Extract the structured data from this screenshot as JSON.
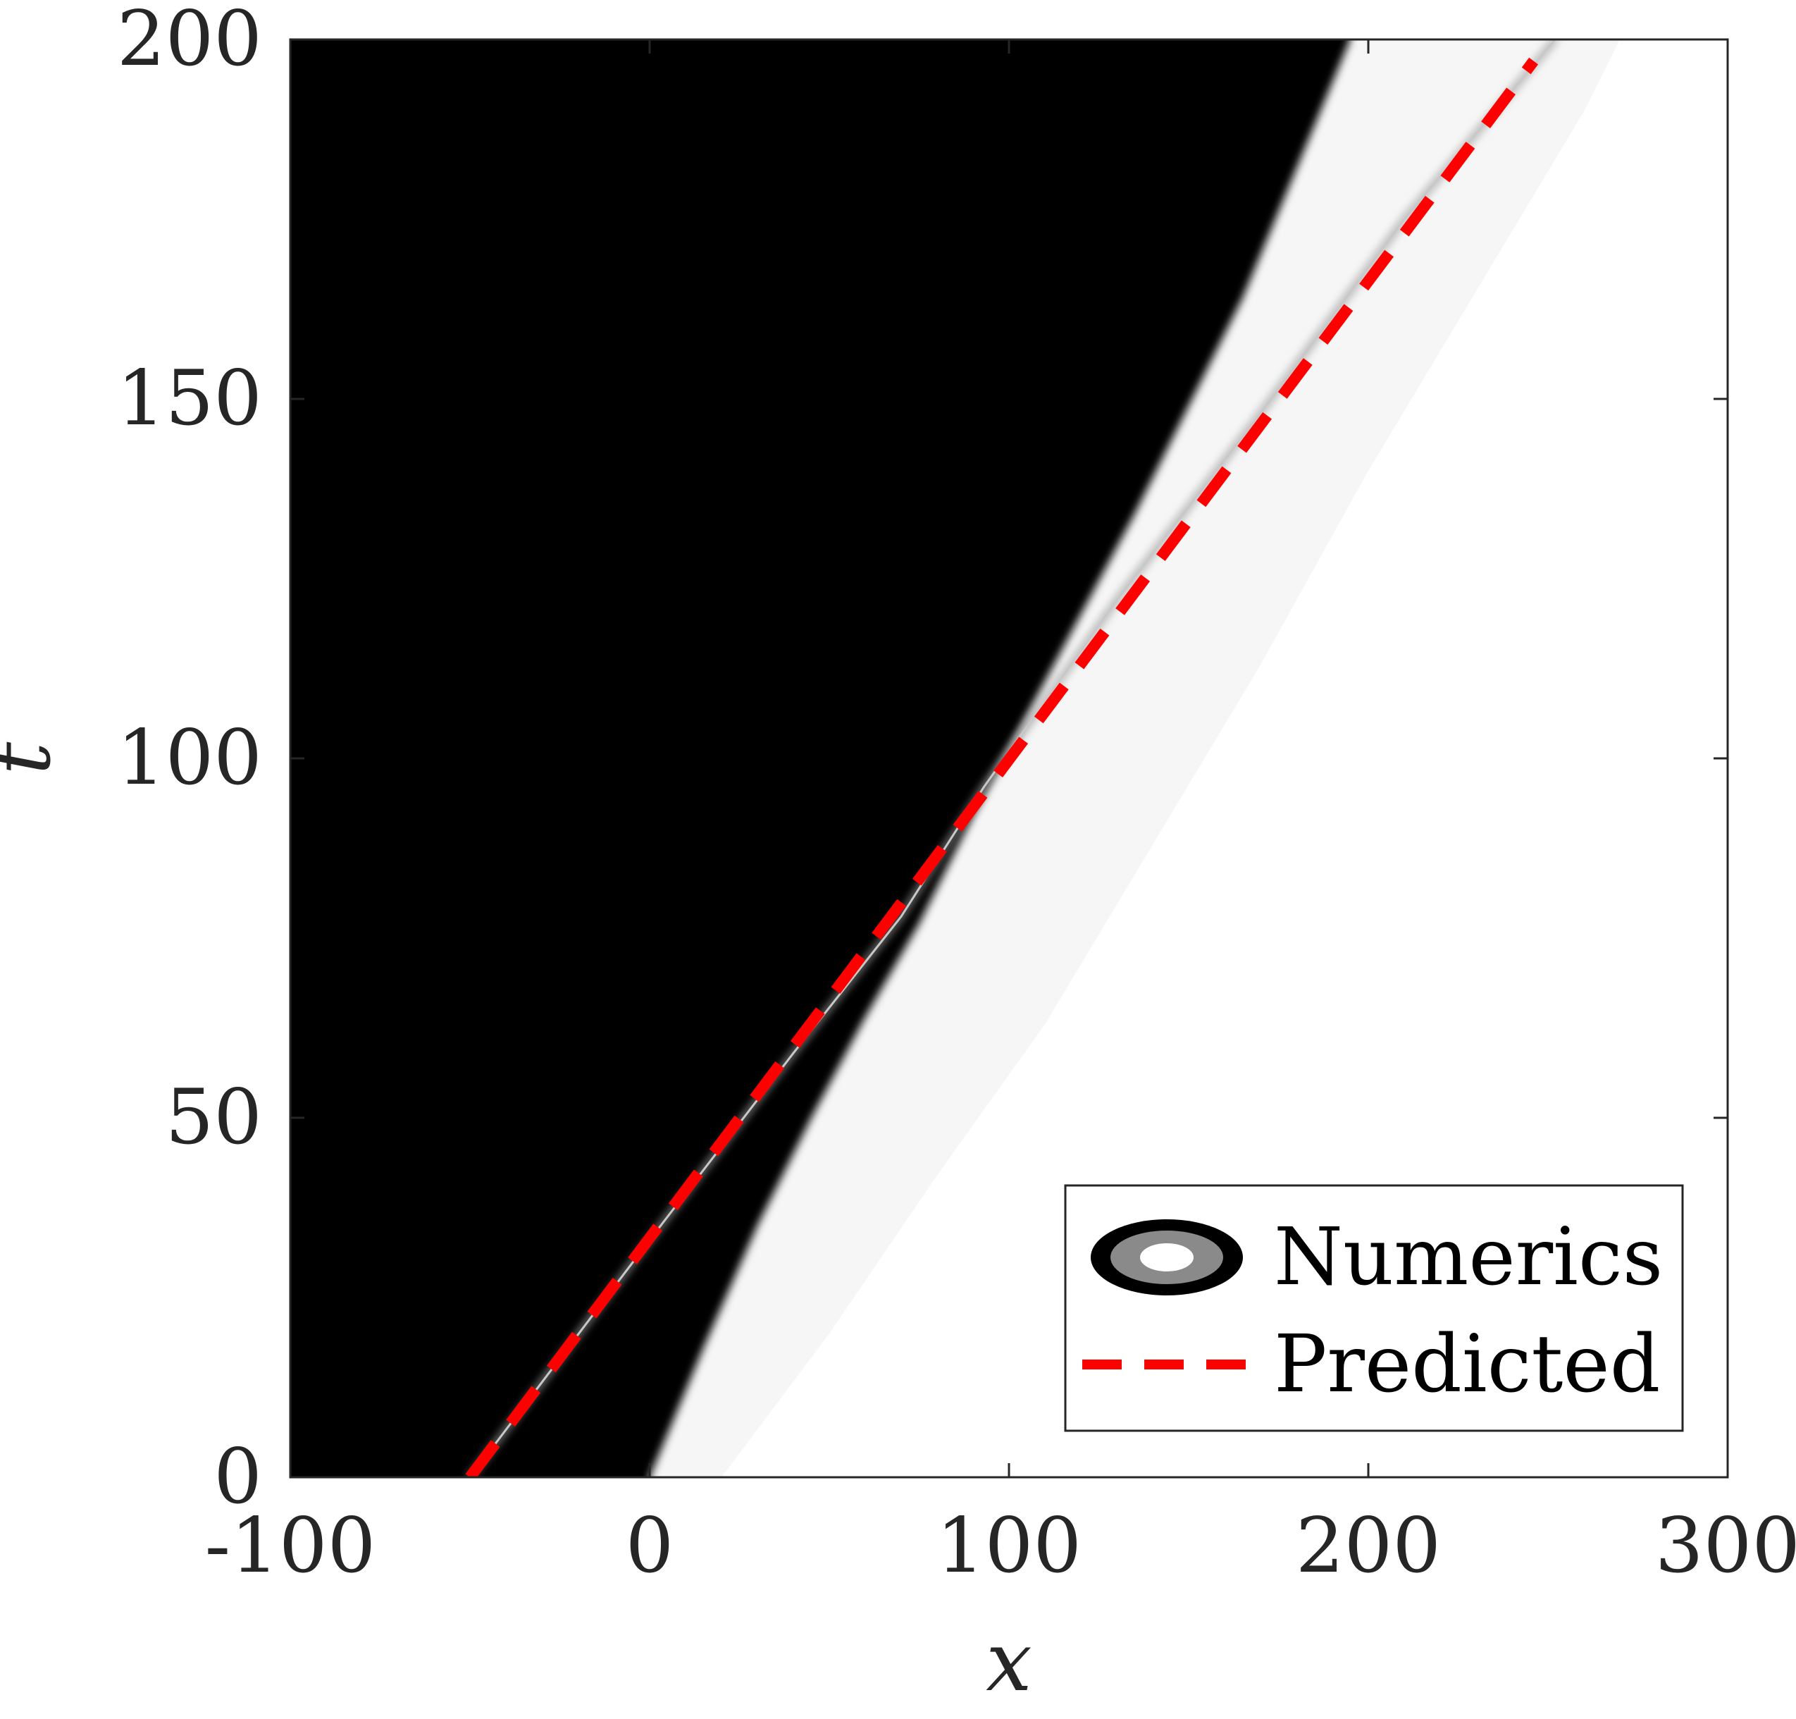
{
  "chart_data": {
    "type": "heatmap",
    "title": "",
    "xlabel": "x",
    "ylabel": "t",
    "xlim": [
      -100,
      300
    ],
    "ylim": [
      0,
      200
    ],
    "x_ticks": [
      -100,
      0,
      100,
      200,
      300
    ],
    "y_ticks": [
      0,
      50,
      100,
      150,
      200
    ],
    "x_tick_labels": [
      "-100",
      "0",
      "100",
      "200",
      "300"
    ],
    "y_tick_labels": [
      "0",
      "50",
      "100",
      "150",
      "200"
    ],
    "grid": false,
    "colormap": "gray",
    "legend_position": "bottom-right",
    "legend": [
      {
        "label": "Numerics",
        "marker": "contour-ellipse"
      },
      {
        "label": "Predicted",
        "marker": "dashed-line",
        "color": "#ff0000"
      }
    ],
    "series": [
      {
        "name": "Predicted",
        "style": "dashed",
        "color": "#ff0000",
        "x": [
          -50,
          246
        ],
        "y": [
          0,
          197
        ]
      }
    ],
    "features": {
      "dark_region_boundary": {
        "x": [
          0,
          15,
          30,
          45,
          60,
          75,
          90,
          105,
          120,
          135,
          150,
          165,
          180,
          195
        ],
        "y": [
          0,
          18,
          35,
          50,
          64,
          77,
          92,
          106,
          120,
          134,
          149,
          164,
          182,
          200
        ]
      },
      "light_band_edge": {
        "x": [
          20,
          50,
          80,
          110,
          140,
          170,
          200,
          230,
          260,
          270
        ],
        "y": [
          0,
          20,
          42,
          63,
          88,
          113,
          140,
          165,
          190,
          200
        ]
      },
      "gray_ridge": {
        "x": [
          -50,
          0,
          40,
          70,
          93,
          130,
          170,
          210,
          252
        ],
        "y": [
          0,
          33,
          59,
          78,
          96,
          122,
          148,
          175,
          200
        ]
      }
    }
  }
}
